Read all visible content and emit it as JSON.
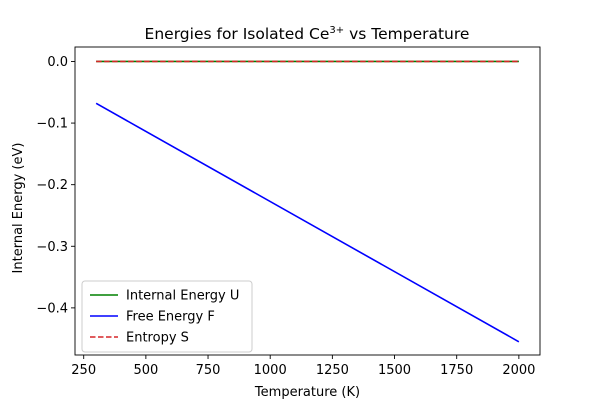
{
  "chart_data": {
    "type": "line",
    "title_main": "Energies for Isolated Ce",
    "title_sup": "3+",
    "title_rest": "  vs Temperature",
    "xlabel": "Temperature (K)",
    "ylabel": "Internal Energy (eV)",
    "xlim": [
      215,
      2085
    ],
    "ylim": [
      -0.4765,
      0.0235
    ],
    "xticks": [
      250,
      500,
      750,
      1000,
      1250,
      1500,
      1750,
      2000
    ],
    "xtick_labels": [
      "250",
      "500",
      "750",
      "1000",
      "1250",
      "1500",
      "1750",
      "2000"
    ],
    "yticks": [
      0.0,
      -0.1,
      -0.2,
      -0.3,
      -0.4
    ],
    "ytick_labels": [
      "0.0",
      "−0.1",
      "−0.2",
      "−0.3",
      "−0.4"
    ],
    "grid": false,
    "legend_position": "lower-left",
    "series": [
      {
        "name": "Internal Energy U",
        "color": "#008000",
        "style": "solid",
        "x": [
          300,
          2000
        ],
        "y": [
          0.0,
          0.0
        ]
      },
      {
        "name": "Free Energy F",
        "color": "#0000ff",
        "style": "solid",
        "x": [
          300,
          2000
        ],
        "y": [
          -0.068,
          -0.455
        ]
      },
      {
        "name": "Entropy S",
        "color": "#d62728",
        "style": "dashed",
        "x": [
          300,
          2000
        ],
        "y": [
          0.0,
          0.0
        ]
      }
    ]
  }
}
